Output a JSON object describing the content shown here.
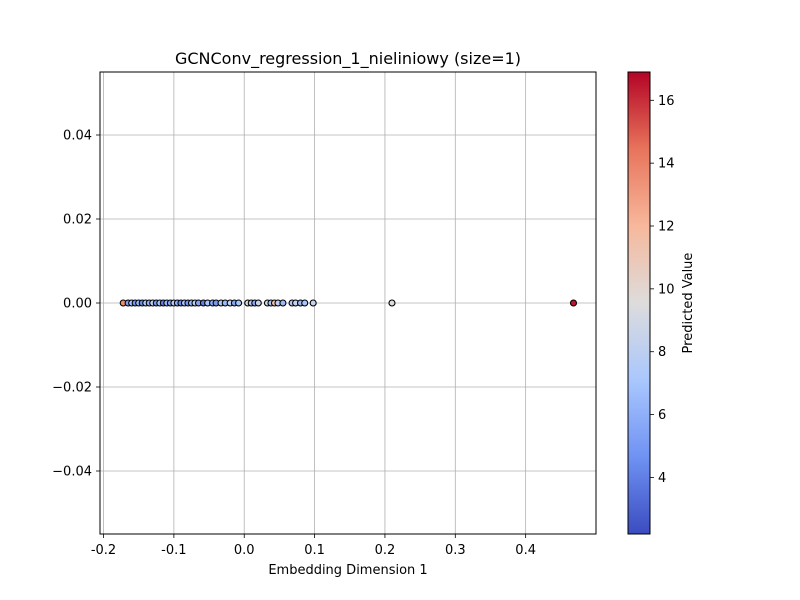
{
  "chart_data": {
    "type": "scatter",
    "title": "GCNConv_regression_1_nieliniowy (size=1)",
    "xlabel": "Embedding Dimension 1",
    "ylabel": "",
    "xlim": [
      -0.205,
      0.5
    ],
    "ylim": [
      -0.055,
      0.055
    ],
    "xticks": [
      "-0.2",
      "-0.1",
      "0.0",
      "0.1",
      "0.2",
      "0.3",
      "0.4"
    ],
    "xtick_values": [
      -0.2,
      -0.1,
      0.0,
      0.1,
      0.2,
      0.3,
      0.4
    ],
    "yticks": [
      "0.04",
      "0.02",
      "0.00",
      "−0.02",
      "−0.04"
    ],
    "ytick_values": [
      0.04,
      0.02,
      0.0,
      -0.02,
      -0.04
    ],
    "grid": true,
    "colorbar": {
      "label": "Predicted Value",
      "range": [
        2.2,
        16.9
      ],
      "ticks": [
        "4",
        "6",
        "8",
        "10",
        "12",
        "14",
        "16"
      ],
      "tick_values": [
        4,
        6,
        8,
        10,
        12,
        14,
        16
      ],
      "colormap": "coolwarm",
      "colors": [
        "#3b4cc0",
        "#6f92f3",
        "#aac7fd",
        "#dddcdc",
        "#f7b89c",
        "#e7745b",
        "#b40426"
      ]
    },
    "points": [
      {
        "x": -0.172,
        "y": 0.0,
        "v": 13.5
      },
      {
        "x": -0.165,
        "y": 0.0,
        "v": 5.5
      },
      {
        "x": -0.16,
        "y": 0.0,
        "v": 7.0
      },
      {
        "x": -0.155,
        "y": 0.0,
        "v": 5.0
      },
      {
        "x": -0.15,
        "y": 0.0,
        "v": 6.5
      },
      {
        "x": -0.145,
        "y": 0.0,
        "v": 4.5
      },
      {
        "x": -0.14,
        "y": 0.0,
        "v": 7.5
      },
      {
        "x": -0.135,
        "y": 0.0,
        "v": 6.0
      },
      {
        "x": -0.13,
        "y": 0.0,
        "v": 8.5
      },
      {
        "x": -0.125,
        "y": 0.0,
        "v": 5.0
      },
      {
        "x": -0.12,
        "y": 0.0,
        "v": 7.0
      },
      {
        "x": -0.115,
        "y": 0.0,
        "v": 4.0
      },
      {
        "x": -0.11,
        "y": 0.0,
        "v": 6.5
      },
      {
        "x": -0.105,
        "y": 0.0,
        "v": 5.5
      },
      {
        "x": -0.1,
        "y": 0.0,
        "v": 8.0
      },
      {
        "x": -0.095,
        "y": 0.0,
        "v": 6.0
      },
      {
        "x": -0.09,
        "y": 0.0,
        "v": 4.5
      },
      {
        "x": -0.085,
        "y": 0.0,
        "v": 7.0
      },
      {
        "x": -0.08,
        "y": 0.0,
        "v": 5.0
      },
      {
        "x": -0.075,
        "y": 0.0,
        "v": 6.5
      },
      {
        "x": -0.07,
        "y": 0.0,
        "v": 8.0
      },
      {
        "x": -0.065,
        "y": 0.0,
        "v": 5.5
      },
      {
        "x": -0.058,
        "y": 0.0,
        "v": 4.0
      },
      {
        "x": -0.052,
        "y": 0.0,
        "v": 7.0
      },
      {
        "x": -0.045,
        "y": 0.0,
        "v": 6.0
      },
      {
        "x": -0.04,
        "y": 0.0,
        "v": 5.0
      },
      {
        "x": -0.033,
        "y": 0.0,
        "v": 7.5
      },
      {
        "x": -0.027,
        "y": 0.0,
        "v": 6.5
      },
      {
        "x": -0.02,
        "y": 0.0,
        "v": 8.5
      },
      {
        "x": -0.014,
        "y": 0.0,
        "v": 5.5
      },
      {
        "x": -0.008,
        "y": 0.0,
        "v": 7.0
      },
      {
        "x": 0.005,
        "y": 0.0,
        "v": 9.5
      },
      {
        "x": 0.01,
        "y": 0.0,
        "v": 7.5
      },
      {
        "x": 0.015,
        "y": 0.0,
        "v": 6.0
      },
      {
        "x": 0.02,
        "y": 0.0,
        "v": 8.5
      },
      {
        "x": 0.033,
        "y": 0.0,
        "v": 9.0
      },
      {
        "x": 0.038,
        "y": 0.0,
        "v": 7.0
      },
      {
        "x": 0.043,
        "y": 0.0,
        "v": 11.5
      },
      {
        "x": 0.048,
        "y": 0.0,
        "v": 8.0
      },
      {
        "x": 0.055,
        "y": 0.0,
        "v": 6.5
      },
      {
        "x": 0.068,
        "y": 0.0,
        "v": 7.5
      },
      {
        "x": 0.073,
        "y": 0.0,
        "v": 8.5
      },
      {
        "x": 0.08,
        "y": 0.0,
        "v": 6.5
      },
      {
        "x": 0.086,
        "y": 0.0,
        "v": 7.0
      },
      {
        "x": 0.098,
        "y": 0.0,
        "v": 8.5
      },
      {
        "x": 0.21,
        "y": 0.0,
        "v": 9.5
      },
      {
        "x": 0.468,
        "y": 0.0,
        "v": 16.5
      }
    ]
  }
}
